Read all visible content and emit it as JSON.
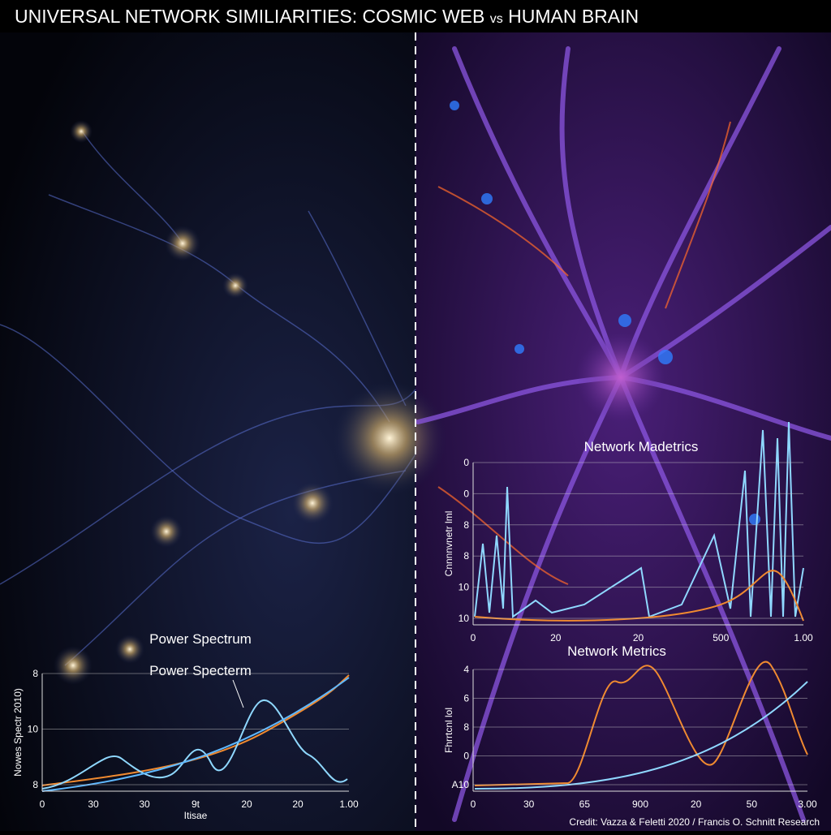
{
  "header": {
    "title": "UNIVERSAL NETWORK SIMILIARITIES: COSMIC WEB",
    "title_vs": "vs",
    "title_end": "HUMAN BRAIN"
  },
  "left_panel": {
    "label_top": "Power Spectrum",
    "label_bottom": "Power Specterm",
    "plot": {
      "y_label": "Nowes Spectr 2010)",
      "x_label": "Itisae",
      "yticks": [
        "8",
        "10",
        "8"
      ],
      "xticks": [
        "0",
        "30",
        "30",
        "9t",
        "20",
        "20",
        "1.00"
      ]
    }
  },
  "right_panel": {
    "top_plot": {
      "title": "Network Madetrics",
      "y_label": "Cnnnnvnetr lml",
      "yticks": [
        "10",
        "10",
        "8",
        "8",
        "0",
        "0"
      ],
      "xticks": [
        "0",
        "20",
        "20",
        "500",
        "1.00"
      ]
    },
    "bottom_plot": {
      "title": "Network Metrics",
      "y_label": "Fhrrtcnl lol",
      "yticks": [
        "A10",
        "0",
        "8",
        "6",
        "4"
      ],
      "xticks": [
        "0",
        "30",
        "65",
        "900",
        "20",
        "50",
        "3.00"
      ]
    }
  },
  "credit": "Credit: Vazza & Feletti 2020 / Francis O. Schnitt Research"
}
